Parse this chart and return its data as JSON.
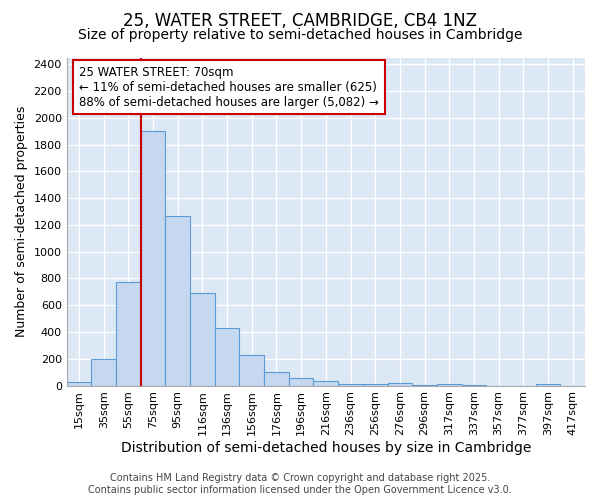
{
  "title": "25, WATER STREET, CAMBRIDGE, CB4 1NZ",
  "subtitle": "Size of property relative to semi-detached houses in Cambridge",
  "xlabel": "Distribution of semi-detached houses by size in Cambridge",
  "ylabel": "Number of semi-detached properties",
  "categories": [
    "15sqm",
    "35sqm",
    "55sqm",
    "75sqm",
    "95sqm",
    "116sqm",
    "136sqm",
    "156sqm",
    "176sqm",
    "196sqm",
    "216sqm",
    "236sqm",
    "256sqm",
    "276sqm",
    "296sqm",
    "317sqm",
    "337sqm",
    "357sqm",
    "377sqm",
    "397sqm",
    "417sqm"
  ],
  "values": [
    25,
    200,
    770,
    1900,
    1270,
    690,
    430,
    230,
    105,
    60,
    35,
    10,
    10,
    20,
    5,
    15,
    5,
    0,
    0,
    10,
    0
  ],
  "bar_color": "#c5d8f0",
  "bar_edge_color": "#5b9bd5",
  "plot_bg_color": "#dde8f5",
  "fig_bg_color": "#ffffff",
  "grid_color": "#ffffff",
  "annotation_text": "25 WATER STREET: 70sqm\n← 11% of semi-detached houses are smaller (625)\n88% of semi-detached houses are larger (5,082) →",
  "vline_x": 2.5,
  "vline_color": "#cc0000",
  "annotation_box_facecolor": "#ffffff",
  "annotation_box_edgecolor": "#cc0000",
  "ylim": [
    0,
    2450
  ],
  "yticks": [
    0,
    200,
    400,
    600,
    800,
    1000,
    1200,
    1400,
    1600,
    1800,
    2000,
    2200,
    2400
  ],
  "footer_line1": "Contains HM Land Registry data © Crown copyright and database right 2025.",
  "footer_line2": "Contains public sector information licensed under the Open Government Licence v3.0.",
  "title_fontsize": 12,
  "subtitle_fontsize": 10,
  "tick_fontsize": 8,
  "ylabel_fontsize": 9,
  "xlabel_fontsize": 10,
  "annotation_fontsize": 8.5,
  "footer_fontsize": 7
}
